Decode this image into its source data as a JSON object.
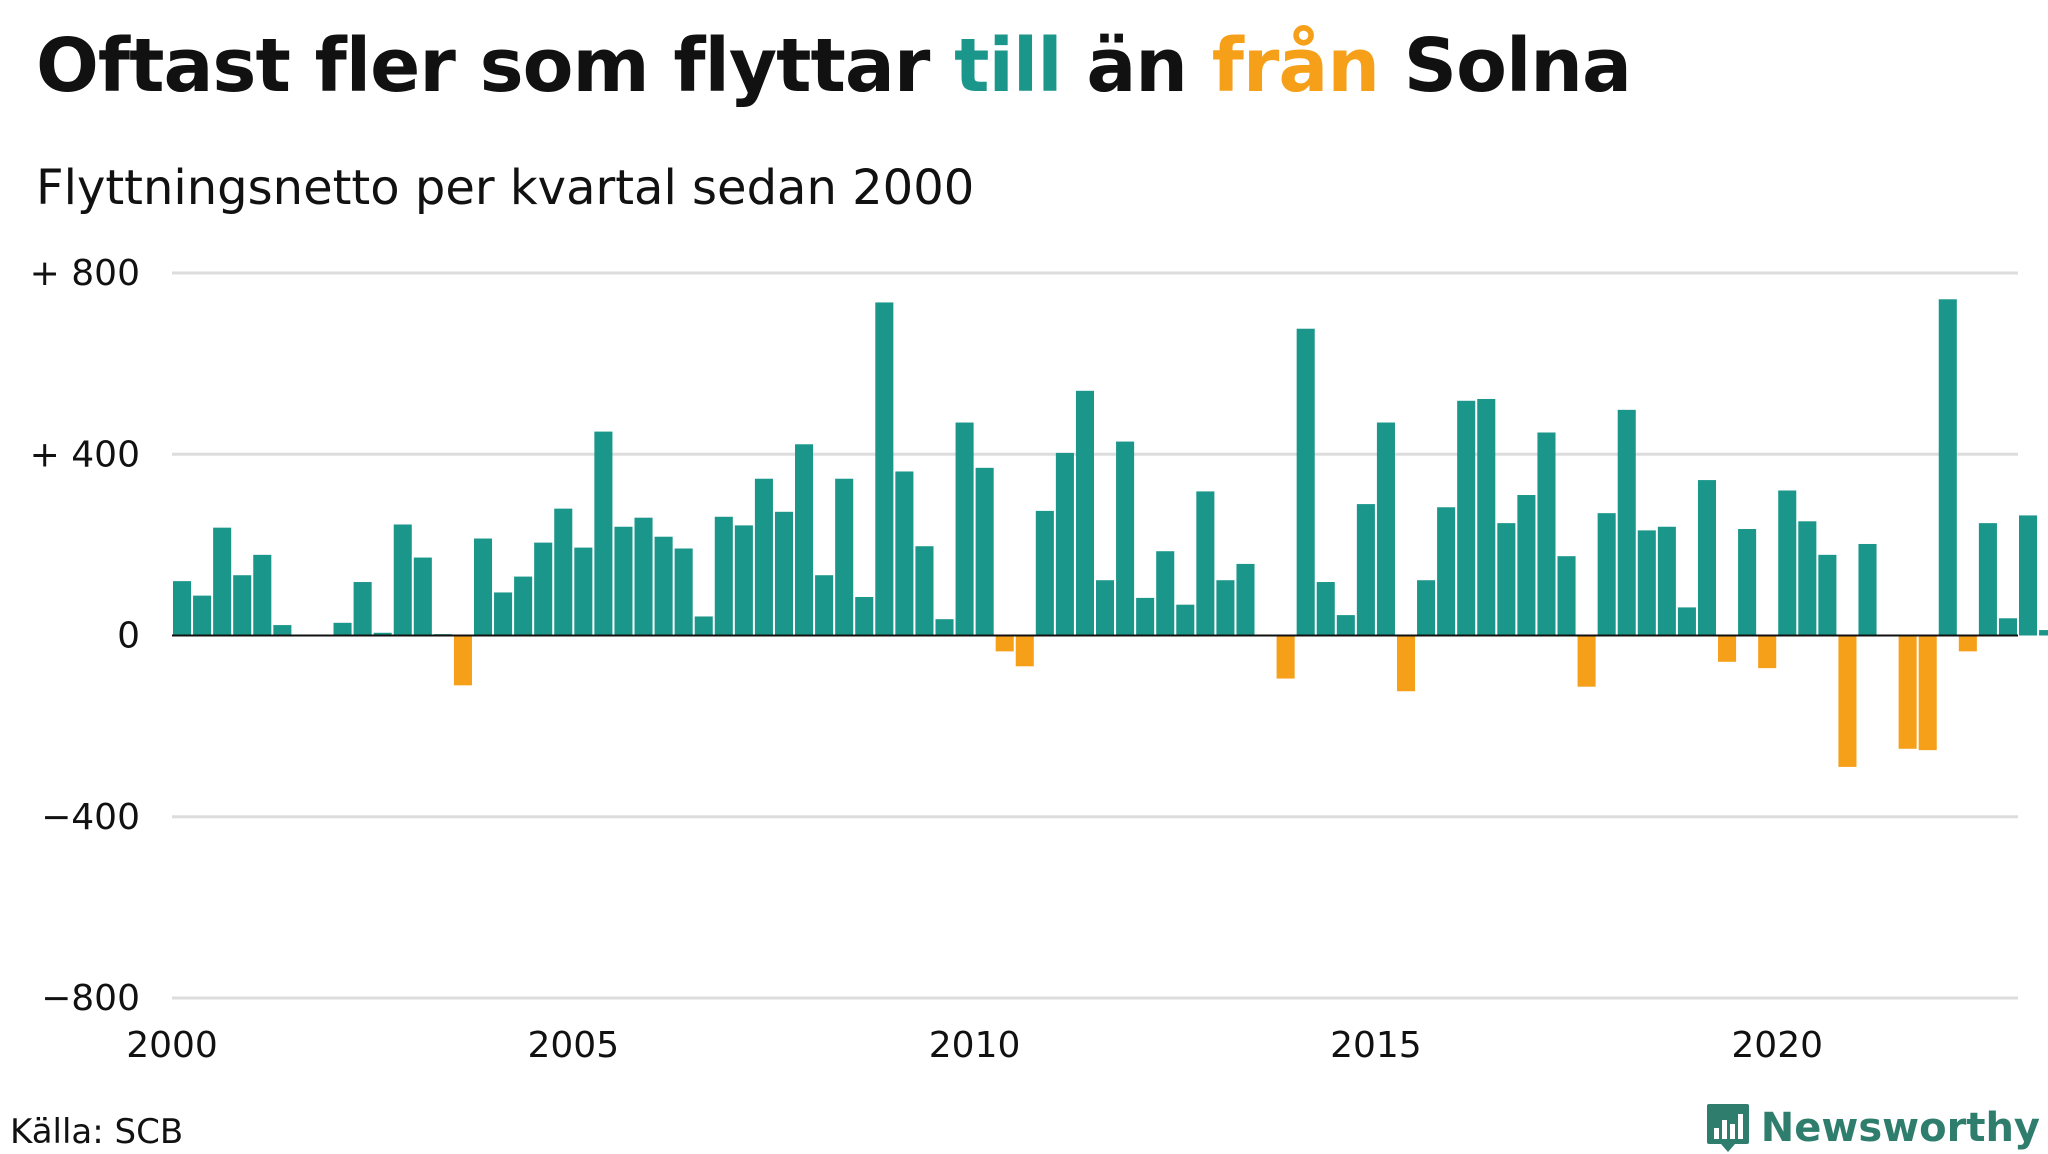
{
  "title": {
    "part1": "Oftast fler som flyttar ",
    "till": "till",
    "part2": " än ",
    "fran": "från",
    "part3": " Solna"
  },
  "subtitle": "Flyttningsnetto per kvartal sedan 2000",
  "source": "Källa: SCB",
  "brand": "Newsworthy",
  "colors": {
    "positive": "#1a968a",
    "negative": "#f6a01a",
    "brand": "#2f7d6d",
    "grid": "#dddddd"
  },
  "chart_data": {
    "type": "bar",
    "ylim": [
      -800,
      800
    ],
    "xlim": [
      2000,
      2023
    ],
    "yticks": [
      {
        "value": 800,
        "label": "+ 800"
      },
      {
        "value": 400,
        "label": "+ 400"
      },
      {
        "value": 0,
        "label": "0"
      },
      {
        "value": -400,
        "label": "−400"
      },
      {
        "value": -800,
        "label": "−800"
      }
    ],
    "xticks": [
      {
        "value": 2000,
        "label": "2000"
      },
      {
        "value": 2005,
        "label": "2005"
      },
      {
        "value": 2010,
        "label": "2010"
      },
      {
        "value": 2015,
        "label": "2015"
      },
      {
        "value": 2020,
        "label": "2020"
      }
    ],
    "start_year": 2000,
    "quarters_per_year": 4,
    "values": [
      120,
      88,
      238,
      133,
      178,
      23,
      0,
      0,
      28,
      118,
      6,
      245,
      172,
      3,
      -110,
      214,
      95,
      130,
      205,
      280,
      194,
      450,
      240,
      260,
      218,
      192,
      42,
      262,
      243,
      346,
      273,
      422,
      133,
      346,
      85,
      735,
      362,
      197,
      36,
      470,
      370,
      -35,
      -68,
      275,
      403,
      540,
      122,
      428,
      83,
      186,
      68,
      318,
      122,
      158,
      0,
      -95,
      677,
      118,
      45,
      290,
      470,
      -123,
      122,
      283,
      518,
      522,
      248,
      310,
      448,
      175,
      -113,
      270,
      498,
      232,
      240,
      62,
      343,
      -58,
      235,
      -72,
      320,
      252,
      178,
      -290,
      202,
      0,
      -250,
      -253,
      742,
      -35,
      248,
      38,
      265,
      12
    ]
  }
}
